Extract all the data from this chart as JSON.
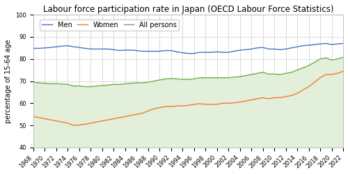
{
  "title": "Labour force participation rate in Japan (OECD Labour Force Statistics)",
  "ylabel": "percentage of 15-64 age",
  "years": [
    1968,
    1969,
    1970,
    1971,
    1972,
    1973,
    1974,
    1975,
    1976,
    1977,
    1978,
    1979,
    1980,
    1981,
    1982,
    1983,
    1984,
    1985,
    1986,
    1987,
    1988,
    1989,
    1990,
    1991,
    1992,
    1993,
    1994,
    1995,
    1996,
    1997,
    1998,
    1999,
    2000,
    2001,
    2002,
    2003,
    2004,
    2005,
    2006,
    2007,
    2008,
    2009,
    2010,
    2011,
    2012,
    2013,
    2014,
    2015,
    2016,
    2017,
    2018,
    2019,
    2020,
    2021,
    2022
  ],
  "men": [
    84.8,
    84.8,
    85.0,
    85.2,
    85.5,
    85.8,
    86.0,
    85.5,
    85.2,
    84.8,
    84.5,
    84.5,
    84.5,
    84.5,
    84.2,
    83.8,
    84.0,
    84.0,
    83.8,
    83.5,
    83.5,
    83.5,
    83.5,
    83.8,
    83.8,
    83.2,
    82.8,
    82.5,
    82.5,
    83.0,
    83.0,
    83.0,
    83.2,
    83.0,
    83.0,
    83.5,
    84.0,
    84.2,
    84.5,
    85.0,
    85.2,
    84.5,
    84.5,
    84.2,
    84.5,
    85.0,
    85.5,
    86.0,
    86.2,
    86.5,
    86.8,
    87.0,
    86.5,
    86.8,
    87.0
  ],
  "women": [
    54.0,
    53.5,
    53.0,
    52.5,
    52.0,
    51.5,
    51.0,
    50.0,
    50.2,
    50.5,
    51.0,
    51.5,
    52.0,
    52.5,
    53.0,
    53.5,
    54.0,
    54.5,
    55.0,
    55.5,
    56.5,
    57.5,
    58.0,
    58.5,
    58.5,
    58.8,
    58.8,
    59.0,
    59.5,
    59.8,
    59.5,
    59.5,
    59.5,
    60.0,
    60.0,
    60.2,
    60.5,
    61.0,
    61.5,
    62.0,
    62.5,
    62.0,
    62.5,
    62.5,
    63.0,
    63.5,
    64.5,
    66.0,
    67.5,
    69.5,
    71.5,
    73.0,
    73.0,
    73.5,
    74.5
  ],
  "all_persons": [
    69.5,
    69.2,
    69.0,
    68.8,
    68.8,
    68.7,
    68.5,
    67.8,
    67.8,
    67.5,
    67.5,
    67.8,
    68.0,
    68.2,
    68.5,
    68.5,
    68.8,
    69.0,
    69.2,
    69.2,
    69.5,
    70.0,
    70.5,
    71.0,
    71.2,
    71.0,
    70.8,
    70.8,
    71.0,
    71.5,
    71.5,
    71.5,
    71.5,
    71.5,
    71.5,
    71.8,
    72.0,
    72.5,
    73.0,
    73.5,
    74.0,
    73.2,
    73.2,
    73.0,
    73.5,
    74.0,
    75.0,
    76.0,
    77.0,
    78.5,
    80.0,
    80.5,
    79.5,
    80.0,
    80.8
  ],
  "men_color": "#4472c4",
  "women_color": "#ed7d31",
  "all_color": "#70ad47",
  "fill_color": "#e2efda",
  "ylim": [
    40,
    100
  ],
  "yticks": [
    40,
    50,
    60,
    70,
    80,
    90,
    100
  ],
  "bg_color": "#ffffff",
  "grid_color": "#cccccc",
  "title_fontsize": 8.5,
  "label_fontsize": 7.0,
  "tick_fontsize": 6.0,
  "legend_fontsize": 7.0,
  "line_width": 1.0
}
